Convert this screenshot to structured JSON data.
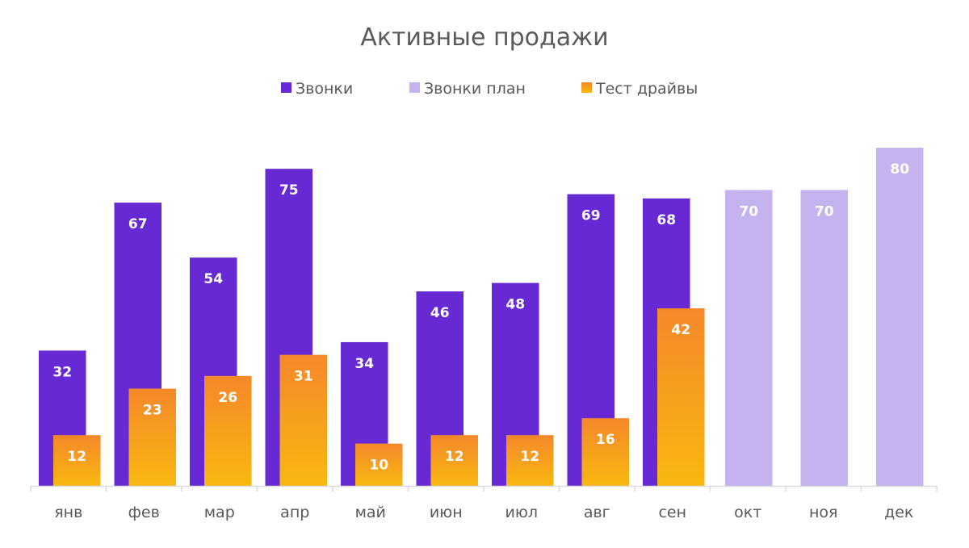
{
  "chart_data": {
    "type": "bar",
    "title": "Активные продажи",
    "categories": [
      "янв",
      "фев",
      "мар",
      "апр",
      "май",
      "июн",
      "июл",
      "авг",
      "сен",
      "окт",
      "ноя",
      "дек"
    ],
    "series": [
      {
        "name": "Звонки",
        "color": "#6629D3",
        "values": [
          32,
          67,
          54,
          75,
          34,
          46,
          48,
          69,
          68,
          null,
          null,
          null
        ]
      },
      {
        "name": "Звонки план",
        "color": "#C5B3EF",
        "values": [
          null,
          null,
          null,
          null,
          null,
          null,
          null,
          null,
          null,
          70,
          70,
          80
        ]
      },
      {
        "name": "Тест драйвы",
        "color_top": "#F5882A",
        "color_bottom": "#F8B80F",
        "values": [
          12,
          23,
          26,
          31,
          10,
          12,
          12,
          16,
          42,
          null,
          null,
          null
        ]
      }
    ],
    "ylim": [
      0,
      80
    ],
    "grid": false,
    "data_labels": true,
    "legend": "top"
  }
}
